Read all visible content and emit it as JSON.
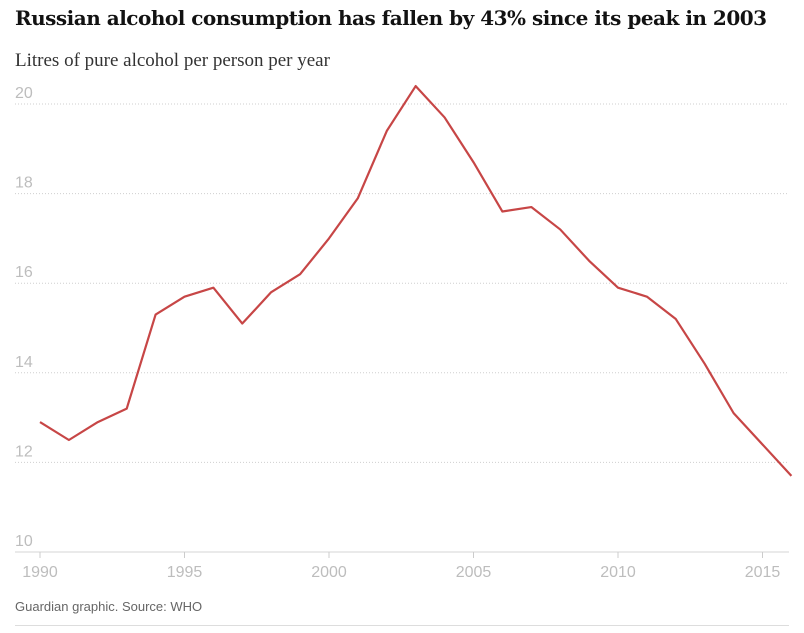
{
  "chart_data": {
    "type": "line",
    "title": "Russian alcohol consumption has fallen by 43% since its peak in 2003",
    "subtitle": "Litres of pure alcohol per person per year",
    "source": "Guardian graphic. Source: WHO",
    "x": [
      1990,
      1991,
      1992,
      1993,
      1994,
      1995,
      1996,
      1997,
      1998,
      1999,
      2000,
      2001,
      2002,
      2003,
      2004,
      2005,
      2006,
      2007,
      2008,
      2009,
      2010,
      2011,
      2012,
      2013,
      2014,
      2015,
      2016
    ],
    "series": [
      {
        "values": [
          12.9,
          12.5,
          12.9,
          13.2,
          15.3,
          15.7,
          15.9,
          15.1,
          15.8,
          16.2,
          17.0,
          17.9,
          19.4,
          20.4,
          19.7,
          18.7,
          17.6,
          17.7,
          17.2,
          16.5,
          15.9,
          15.7,
          15.2,
          14.2,
          13.1,
          12.4,
          11.7
        ],
        "color": "#c74646"
      }
    ],
    "xlim": [
      1990,
      2016
    ],
    "ylim": [
      10,
      20
    ],
    "y_ticks": [
      10,
      12,
      14,
      16,
      18,
      20
    ],
    "x_ticks": [
      1990,
      1995,
      2000,
      2005,
      2010,
      2015
    ],
    "grid": "horizontal dotted"
  }
}
